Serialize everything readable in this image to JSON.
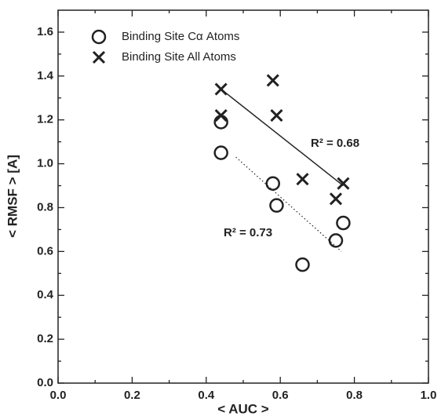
{
  "chart_data": {
    "type": "scatter",
    "xlabel": "< AUC >",
    "ylabel": "< RMSF > [A]",
    "xlim": [
      0,
      1.0
    ],
    "ylim": [
      0,
      1.7
    ],
    "xticks": [
      {
        "value": 0,
        "label": "0.0"
      },
      {
        "value": 0.2,
        "label": "0.2"
      },
      {
        "value": 0.4,
        "label": "0.4"
      },
      {
        "value": 0.6,
        "label": "0.6"
      },
      {
        "value": 0.8,
        "label": "0.8"
      },
      {
        "value": 1.0,
        "label": "1.0"
      }
    ],
    "yticks": [
      {
        "value": 0,
        "label": "0.0"
      },
      {
        "value": 0.2,
        "label": "0.2"
      },
      {
        "value": 0.4,
        "label": "0.4"
      },
      {
        "value": 0.6,
        "label": "0.6"
      },
      {
        "value": 0.8,
        "label": "0.8"
      },
      {
        "value": 1.0,
        "label": "1.0"
      },
      {
        "value": 1.2,
        "label": "1.2"
      },
      {
        "value": 1.4,
        "label": "1.4"
      },
      {
        "value": 1.6,
        "label": "1.6"
      }
    ],
    "series": [
      {
        "name": "Binding Site Cα Atoms",
        "marker": "circle",
        "color": "#222222",
        "x": [
          0.44,
          0.44,
          0.58,
          0.59,
          0.66,
          0.75,
          0.77
        ],
        "values": [
          1.19,
          1.05,
          0.91,
          0.81,
          0.54,
          0.65,
          0.73
        ]
      },
      {
        "name": "Binding Site All Atoms",
        "marker": "cross",
        "color": "#222222",
        "x": [
          0.44,
          0.44,
          0.58,
          0.59,
          0.66,
          0.75,
          0.77
        ],
        "values": [
          1.34,
          1.22,
          1.38,
          1.22,
          0.93,
          0.84,
          0.91
        ]
      }
    ],
    "fits": [
      {
        "label": "R² = 0.68",
        "style": "solid",
        "x": [
          0.44,
          0.77
        ],
        "y": [
          1.34,
          0.9
        ]
      },
      {
        "label": "R² = 0.73",
        "style": "dotted",
        "x": [
          0.48,
          0.765
        ],
        "y": [
          1.03,
          0.6
        ]
      }
    ]
  }
}
